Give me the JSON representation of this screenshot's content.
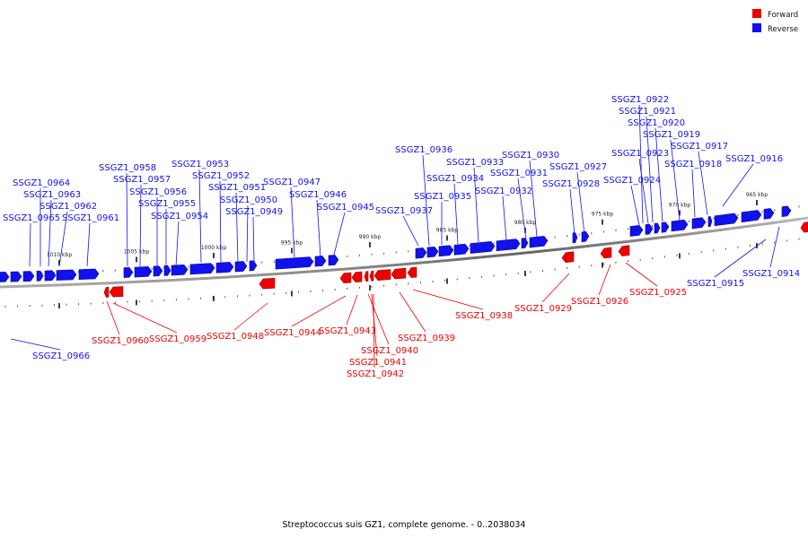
{
  "caption": "Streptococcus suis GZ1, complete genome. - 0..2038034",
  "legend": [
    {
      "label": "Forward",
      "color": "#ee0000"
    },
    {
      "label": "Reverse",
      "color": "#1111ee"
    }
  ],
  "scale_labels": [
    "1010 kbp",
    "1005 kbp",
    "1000 kbp",
    "995 kbp",
    "990 kbp",
    "985 kbp",
    "980 kbp",
    "975 kbp",
    "970 kbp",
    "965 kbp"
  ],
  "reverse_genes": [
    {
      "id": "SSGZ1_0966"
    },
    {
      "id": "SSGZ1_0965"
    },
    {
      "id": "SSGZ1_0964"
    },
    {
      "id": "SSGZ1_0963"
    },
    {
      "id": "SSGZ1_0962"
    },
    {
      "id": "SSGZ1_0961"
    },
    {
      "id": "SSGZ1_0958"
    },
    {
      "id": "SSGZ1_0957"
    },
    {
      "id": "SSGZ1_0956"
    },
    {
      "id": "SSGZ1_0955"
    },
    {
      "id": "SSGZ1_0954"
    },
    {
      "id": "SSGZ1_0953"
    },
    {
      "id": "SSGZ1_0952"
    },
    {
      "id": "SSGZ1_0951"
    },
    {
      "id": "SSGZ1_0950"
    },
    {
      "id": "SSGZ1_0949"
    },
    {
      "id": "SSGZ1_0947"
    },
    {
      "id": "SSGZ1_0946"
    },
    {
      "id": "SSGZ1_0945"
    },
    {
      "id": "SSGZ1_0937"
    },
    {
      "id": "SSGZ1_0936"
    },
    {
      "id": "SSGZ1_0935"
    },
    {
      "id": "SSGZ1_0934"
    },
    {
      "id": "SSGZ1_0933"
    },
    {
      "id": "SSGZ1_0932"
    },
    {
      "id": "SSGZ1_0931"
    },
    {
      "id": "SSGZ1_0930"
    },
    {
      "id": "SSGZ1_0928"
    },
    {
      "id": "SSGZ1_0927"
    },
    {
      "id": "SSGZ1_0924"
    },
    {
      "id": "SSGZ1_0923"
    },
    {
      "id": "SSGZ1_0922"
    },
    {
      "id": "SSGZ1_0921"
    },
    {
      "id": "SSGZ1_0920"
    },
    {
      "id": "SSGZ1_0919"
    },
    {
      "id": "SSGZ1_0918"
    },
    {
      "id": "SSGZ1_0917"
    },
    {
      "id": "SSGZ1_0916"
    },
    {
      "id": "SSGZ1_0915"
    },
    {
      "id": "SSGZ1_0914"
    }
  ],
  "forward_genes": [
    {
      "id": "SSGZ1_0960"
    },
    {
      "id": "SSGZ1_0959"
    },
    {
      "id": "SSGZ1_0948"
    },
    {
      "id": "SSGZ1_0944"
    },
    {
      "id": "SSGZ1_0943"
    },
    {
      "id": "SSGZ1_0940"
    },
    {
      "id": "SSGZ1_0941"
    },
    {
      "id": "SSGZ1_0942"
    },
    {
      "id": "SSGZ1_0939"
    },
    {
      "id": "SSGZ1_0938"
    },
    {
      "id": "SSGZ1_0929"
    },
    {
      "id": "SSGZ1_0926"
    },
    {
      "id": "SSGZ1_0925"
    }
  ]
}
